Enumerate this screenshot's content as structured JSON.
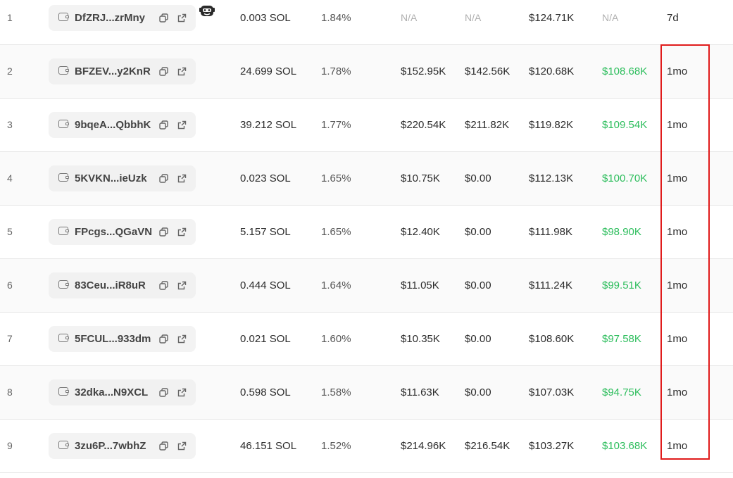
{
  "rows": [
    {
      "rank": "1",
      "address": "DfZRJ...zrMny",
      "sol": "0.003 SOL",
      "pct": "1.84%",
      "c1": "N/A",
      "c2": "N/A",
      "c3": "$124.71K",
      "c4": "N/A",
      "age": "7d",
      "bot": true
    },
    {
      "rank": "2",
      "address": "BFZEV...y2KnR",
      "sol": "24.699 SOL",
      "pct": "1.78%",
      "c1": "$152.95K",
      "c2": "$142.56K",
      "c3": "$120.68K",
      "c4": "$108.68K",
      "age": "1mo",
      "bot": false
    },
    {
      "rank": "3",
      "address": "9bqeA...QbbhK",
      "sol": "39.212 SOL",
      "pct": "1.77%",
      "c1": "$220.54K",
      "c2": "$211.82K",
      "c3": "$119.82K",
      "c4": "$109.54K",
      "age": "1mo",
      "bot": false
    },
    {
      "rank": "4",
      "address": "5KVKN...ieUzk",
      "sol": "0.023 SOL",
      "pct": "1.65%",
      "c1": "$10.75K",
      "c2": "$0.00",
      "c3": "$112.13K",
      "c4": "$100.70K",
      "age": "1mo",
      "bot": false
    },
    {
      "rank": "5",
      "address": "FPcgs...QGaVN",
      "sol": "5.157 SOL",
      "pct": "1.65%",
      "c1": "$12.40K",
      "c2": "$0.00",
      "c3": "$111.98K",
      "c4": "$98.90K",
      "age": "1mo",
      "bot": false
    },
    {
      "rank": "6",
      "address": "83Ceu...iR8uR",
      "sol": "0.444 SOL",
      "pct": "1.64%",
      "c1": "$11.05K",
      "c2": "$0.00",
      "c3": "$111.24K",
      "c4": "$99.51K",
      "age": "1mo",
      "bot": false
    },
    {
      "rank": "7",
      "address": "5FCUL...933dm",
      "sol": "0.021 SOL",
      "pct": "1.60%",
      "c1": "$10.35K",
      "c2": "$0.00",
      "c3": "$108.60K",
      "c4": "$97.58K",
      "age": "1mo",
      "bot": false
    },
    {
      "rank": "8",
      "address": "32dka...N9XCL",
      "sol": "0.598 SOL",
      "pct": "1.58%",
      "c1": "$11.63K",
      "c2": "$0.00",
      "c3": "$107.03K",
      "c4": "$94.75K",
      "age": "1mo",
      "bot": false
    },
    {
      "rank": "9",
      "address": "3zu6P...7wbhZ",
      "sol": "46.151 SOL",
      "pct": "1.52%",
      "c1": "$214.96K",
      "c2": "$216.54K",
      "c3": "$103.27K",
      "c4": "$103.68K",
      "age": "1mo",
      "bot": false
    }
  ],
  "colors": {
    "profit_green": "#2bbd5b",
    "na_gray": "#b0b0b0",
    "highlight_red": "#e01b1b"
  },
  "icons": {
    "wallet": "wallet-icon",
    "copy": "copy-icon",
    "external_link": "external-link-icon",
    "bot": "bot-icon"
  }
}
